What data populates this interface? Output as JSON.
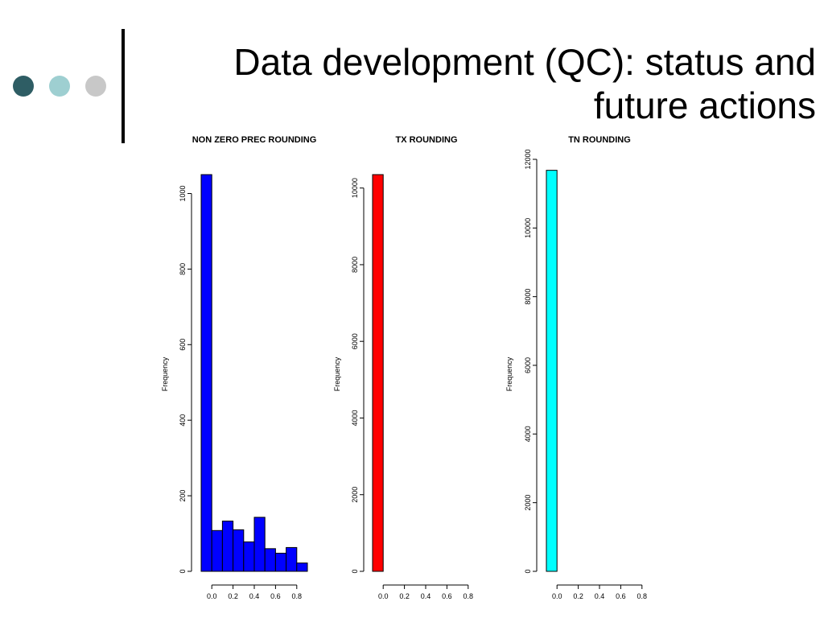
{
  "slide": {
    "title_line1": "Data development (QC): status and",
    "title_line2": "future actions",
    "dot_colors": [
      "#2e5d64",
      "#9ecfd1",
      "#c8c8c8"
    ]
  },
  "chart_data": [
    {
      "type": "bar",
      "title": "NON ZERO PREC ROUNDING",
      "xlabel": "",
      "ylabel": "Frequency",
      "bar_color": "#0000ff",
      "bin_edges": [
        -0.1,
        0.0,
        0.1,
        0.2,
        0.3,
        0.4,
        0.5,
        0.6,
        0.7,
        0.8,
        0.9
      ],
      "values": [
        1050,
        108,
        133,
        110,
        78,
        143,
        60,
        48,
        63,
        22
      ],
      "xticks": [
        "0.0",
        "0.2",
        "0.4",
        "0.6",
        "0.8"
      ],
      "yticks": [
        "0",
        "200",
        "400",
        "600",
        "800",
        "1000"
      ],
      "ylim": [
        0,
        1050
      ],
      "xlim": [
        -0.1,
        0.9
      ]
    },
    {
      "type": "bar",
      "title": "TX ROUNDING",
      "xlabel": "",
      "ylabel": "Frequency",
      "bar_color": "#ff0000",
      "bin_edges": [
        -0.1,
        0.0,
        0.1,
        0.2,
        0.3,
        0.4,
        0.5,
        0.6,
        0.7,
        0.8,
        0.9
      ],
      "values": [
        10350,
        0,
        0,
        0,
        0,
        0,
        0,
        0,
        0,
        0
      ],
      "xticks": [
        "0.0",
        "0.2",
        "0.4",
        "0.6",
        "0.8"
      ],
      "yticks": [
        "0",
        "2000",
        "4000",
        "6000",
        "8000",
        "10000"
      ],
      "ylim": [
        0,
        10350
      ],
      "xlim": [
        -0.1,
        0.9
      ]
    },
    {
      "type": "bar",
      "title": "TN ROUNDING",
      "xlabel": "",
      "ylabel": "Frequency",
      "bar_color": "#00ffff",
      "bin_edges": [
        -0.1,
        0.0,
        0.1,
        0.2,
        0.3,
        0.4,
        0.5,
        0.6,
        0.7,
        0.8,
        0.9
      ],
      "values": [
        11680,
        0,
        0,
        0,
        0,
        0,
        0,
        0,
        0,
        0
      ],
      "xticks": [
        "0.0",
        "0.2",
        "0.4",
        "0.6",
        "0.8"
      ],
      "yticks": [
        "0",
        "2000",
        "4000",
        "6000",
        "8000",
        "10000",
        "12000"
      ],
      "ylim": [
        0,
        12000
      ],
      "xlim": [
        -0.1,
        0.9
      ]
    }
  ]
}
